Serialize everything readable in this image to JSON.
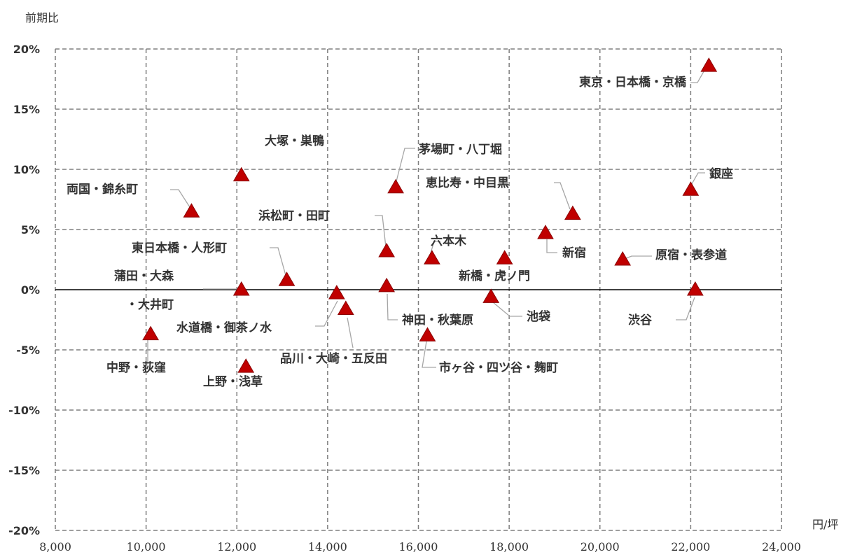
{
  "chart_data": {
    "type": "scatter",
    "title": "",
    "ylabel": "前期比",
    "xlabel": "円/坪",
    "xlim": [
      8000,
      24000
    ],
    "ylim": [
      -0.2,
      0.2
    ],
    "x_ticks": [
      8000,
      10000,
      12000,
      14000,
      16000,
      18000,
      20000,
      22000,
      24000
    ],
    "x_tick_labels": [
      "8,000",
      "10,000",
      "12,000",
      "14,000",
      "16,000",
      "18,000",
      "20,000",
      "22,000",
      "24,000"
    ],
    "y_ticks": [
      0.2,
      0.15,
      0.1,
      0.05,
      0.0,
      -0.05,
      -0.1,
      -0.15,
      -0.2
    ],
    "y_tick_labels": [
      "20%",
      "15%",
      "10%",
      "5%",
      "0%",
      "-5%",
      "-10%",
      "-15%",
      "-20%"
    ],
    "grid": true,
    "marker_color": "#c00000",
    "points": [
      {
        "label": "東京・日本橋・京橋",
        "x": 22400,
        "y": 0.186
      },
      {
        "label": "大塚・巣鴨",
        "x": 12100,
        "y": 0.095
      },
      {
        "label": "茅場町・八丁堀",
        "x": 15500,
        "y": 0.085
      },
      {
        "label": "銀座",
        "x": 22000,
        "y": 0.083
      },
      {
        "label": "両国・錦糸町",
        "x": 11000,
        "y": 0.065
      },
      {
        "label": "恵比寿・中目黒",
        "x": 19400,
        "y": 0.063
      },
      {
        "label": "新宿",
        "x": 18800,
        "y": 0.047
      },
      {
        "label": "浜松町・田町",
        "x": 15300,
        "y": 0.032
      },
      {
        "label": "六本木",
        "x": 16300,
        "y": 0.026
      },
      {
        "label": "新橋・虎ノ門",
        "x": 17900,
        "y": 0.026
      },
      {
        "label": "原宿・表参道",
        "x": 20500,
        "y": 0.025
      },
      {
        "label": "東日本橋・人形町",
        "x": 13100,
        "y": 0.008
      },
      {
        "label": "神田・秋葉原",
        "x": 15300,
        "y": 0.003
      },
      {
        "label": "蒲田・大森",
        "x": 12100,
        "y": 0.0
      },
      {
        "label": "渋谷",
        "x": 22100,
        "y": 0.0
      },
      {
        "label": "水道橋・御茶ノ水",
        "x": 14200,
        "y": -0.003
      },
      {
        "label": "池袋",
        "x": 17600,
        "y": -0.006
      },
      {
        "label": "品川・大崎・五反田",
        "x": 14400,
        "y": -0.016
      },
      {
        "label": "中野・荻窪",
        "x": 10100,
        "y": -0.037
      },
      {
        "label": "市ヶ谷・四ツ谷・麹町",
        "x": 16200,
        "y": -0.038
      },
      {
        "label": "上野・浅草",
        "x": 12200,
        "y": -0.064
      }
    ],
    "extra_text": [
      "・大井町"
    ]
  }
}
